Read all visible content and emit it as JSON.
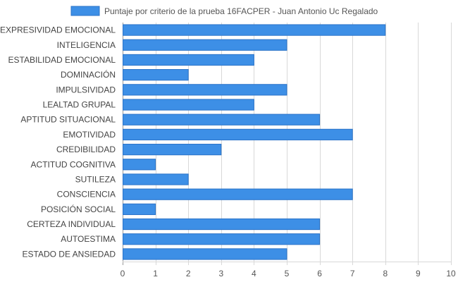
{
  "colors": {
    "bar_fill": "#3d8fe6",
    "bar_stroke": "#2b73c8",
    "grid": "#d8d8d8",
    "axis": "#999999"
  },
  "chart_data": {
    "type": "bar",
    "orientation": "horizontal",
    "title": "",
    "xlabel": "",
    "ylabel": "",
    "xlim": [
      0,
      10
    ],
    "x_ticks": [
      0,
      1,
      2,
      3,
      4,
      5,
      6,
      7,
      8,
      9,
      10
    ],
    "grid": true,
    "legend_position": "top-center",
    "categories": [
      "EXPRESIVIDAD EMOCIONAL",
      "INTELIGENCIA",
      "ESTABILIDAD EMOCIONAL",
      "DOMINACIÓN",
      "IMPULSIVIDAD",
      "LEALTAD GRUPAL",
      "APTITUD SITUACIONAL",
      "EMOTIVIDAD",
      "CREDIBILIDAD",
      "ACTITUD COGNITIVA",
      "SUTILEZA",
      "CONSCIENCIA",
      "POSICIÓN SOCIAL",
      "CERTEZA INDIVIDUAL",
      "AUTOESTIMA",
      "ESTADO DE ANSIEDAD"
    ],
    "series": [
      {
        "name": "Puntaje por criterio de la prueba 16FACPER - Juan Antonio Uc Regalado",
        "values": [
          8,
          5,
          4,
          2,
          5,
          4,
          6,
          7,
          3,
          1,
          2,
          7,
          1,
          6,
          6,
          5
        ]
      }
    ]
  }
}
